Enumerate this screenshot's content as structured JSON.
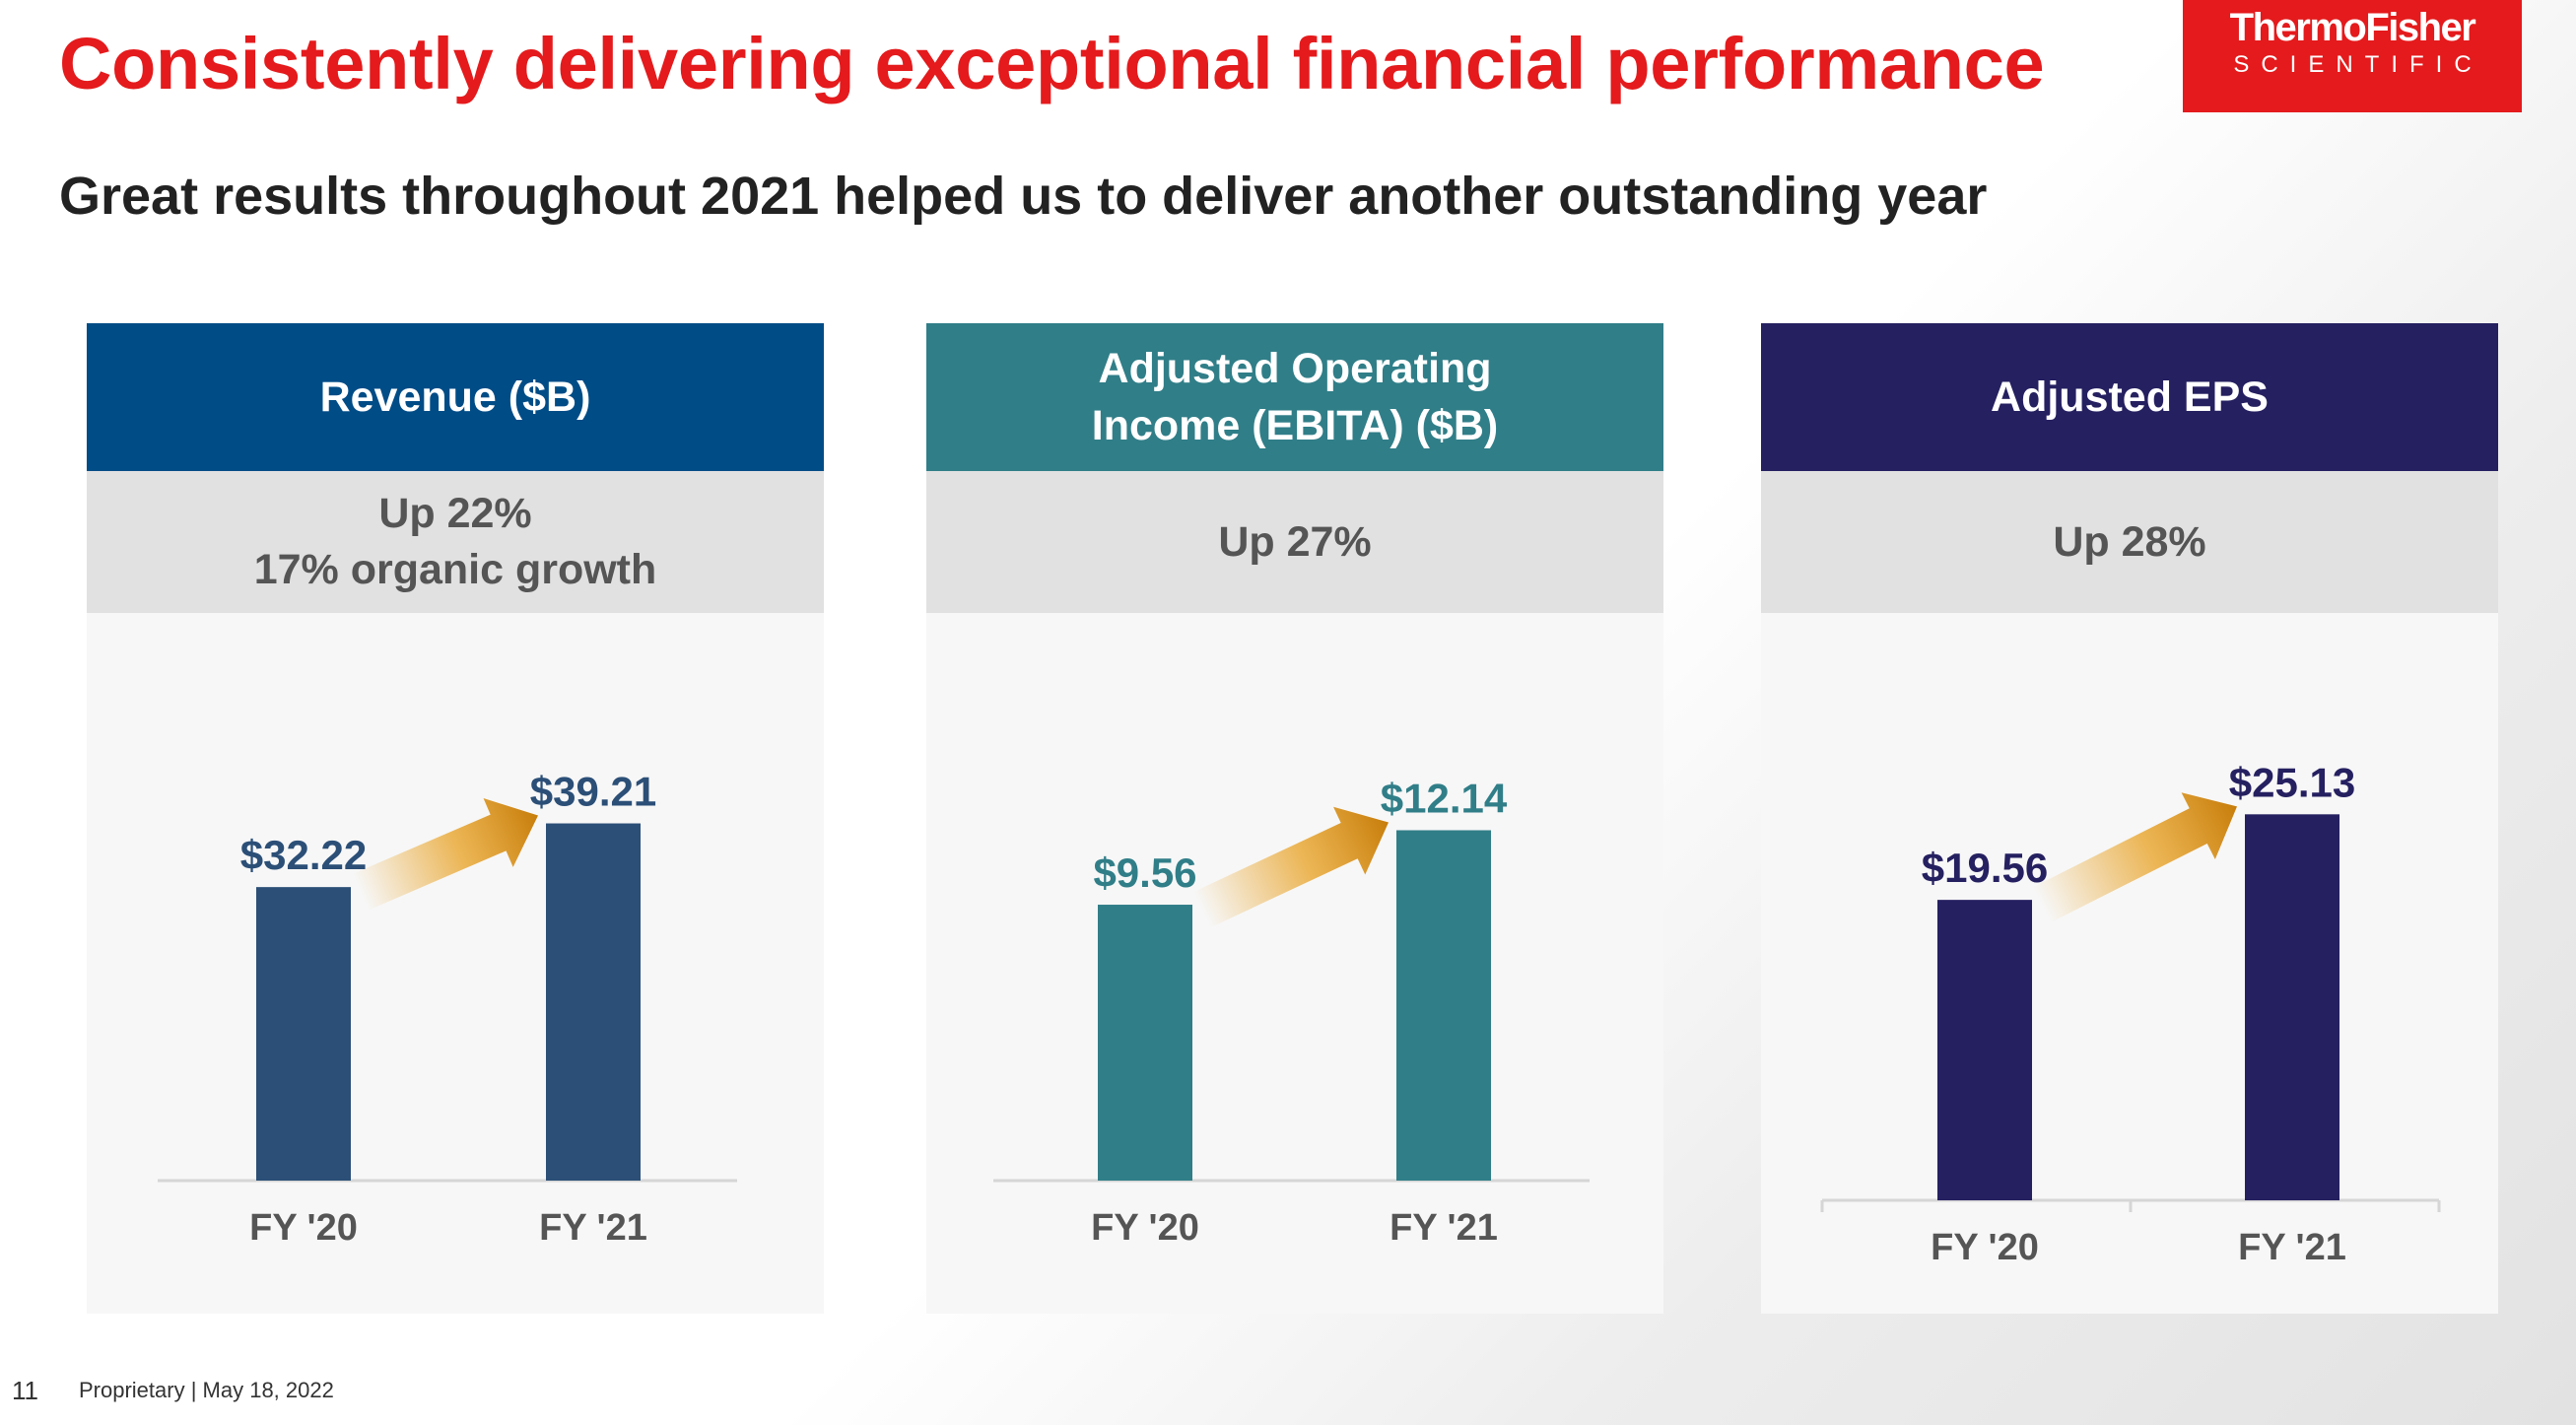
{
  "title": "Consistently delivering exceptional financial performance",
  "subtitle": "Great results throughout 2021 helped us to deliver another outstanding year",
  "logo": {
    "brand": "ThermoFisher",
    "sub": "SCIENTIFIC"
  },
  "footer": {
    "page": "11",
    "text": "Proprietary | May 18, 2022"
  },
  "colors": {
    "title": "#e41a1c",
    "revenue_header": "#004c87",
    "revenue_bar": "#2b4f77",
    "ebita_header": "#307e88",
    "ebita_bar": "#307e88",
    "eps_header": "#252060",
    "eps_bar": "#252060",
    "arrow": "#e8a020"
  },
  "chart_data": [
    {
      "type": "bar",
      "title": "Revenue ($B)",
      "growth": "Up 22%\n17% organic growth",
      "categories": [
        "FY '20",
        "FY '21"
      ],
      "values": [
        32.22,
        39.21
      ],
      "value_labels": [
        "$32.22",
        "$39.21"
      ],
      "ylim": [
        0,
        45
      ],
      "arrow": "increase"
    },
    {
      "type": "bar",
      "title": "Adjusted Operating\nIncome (EBITA) ($B)",
      "growth": "Up 27%",
      "categories": [
        "FY '20",
        "FY '21"
      ],
      "values": [
        9.56,
        12.14
      ],
      "value_labels": [
        "$9.56",
        "$12.14"
      ],
      "ylim": [
        0,
        14
      ],
      "arrow": "increase"
    },
    {
      "type": "bar",
      "title": "Adjusted EPS",
      "growth": "Up 28%",
      "categories": [
        "FY '20",
        "FY '21"
      ],
      "values": [
        19.56,
        25.13
      ],
      "value_labels": [
        "$19.56",
        "$25.13"
      ],
      "ylim": [
        0,
        29
      ],
      "arrow": "increase"
    }
  ]
}
